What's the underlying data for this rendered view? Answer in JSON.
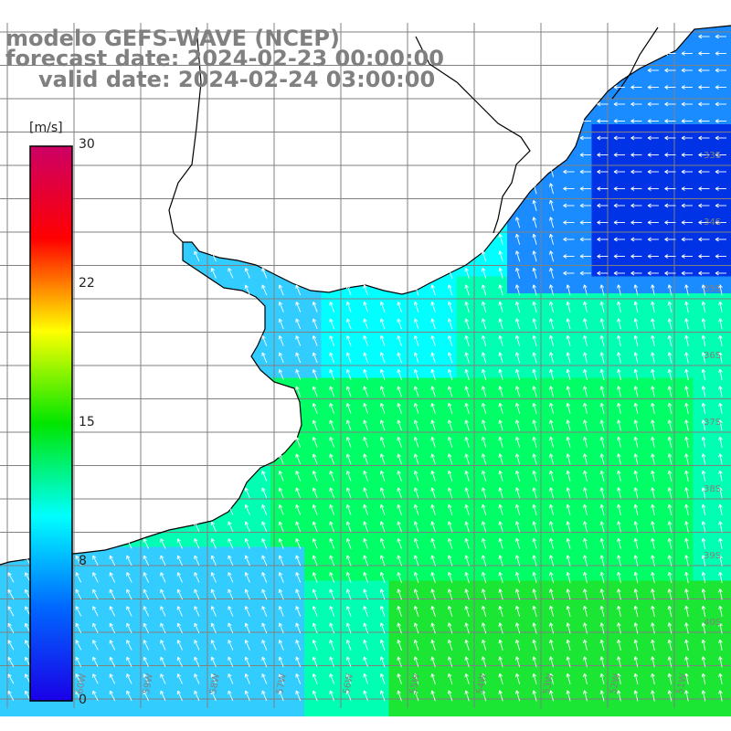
{
  "title": {
    "line1": "modelo GEFS-WAVE (NCEP)",
    "line2": "forecast date: 2024-02-23 00:00:00",
    "line3": "valid date: 2024-02-24 03:00:00"
  },
  "colorbar": {
    "unit": "[m/s]",
    "min": 0,
    "max": 30,
    "ticks": [
      "30",
      "22",
      "15",
      "8",
      "0"
    ],
    "tick_values": [
      30,
      22,
      15,
      8,
      0
    ],
    "stops": [
      "#1a00e6",
      "#0066ff",
      "#00ffff",
      "#00e600",
      "#ffff00",
      "#ff0000",
      "#cc0066"
    ]
  },
  "map": {
    "lat_labels": [
      "33S",
      "34S",
      "35S",
      "36S",
      "37S",
      "38S",
      "39S",
      "40S"
    ],
    "lon_labels": [
      "60W",
      "59W",
      "58W",
      "57W",
      "56W",
      "55W",
      "54W",
      "53W",
      "52W",
      "51W"
    ],
    "land_color": "#ffffff",
    "grid_color": "#808080",
    "coast_color": "#000000",
    "arrow_color": "#ffffff",
    "palette": {
      "deep_blue": "#0033e6",
      "blue": "#1a8cff",
      "light_blue": "#33ccff",
      "cyan": "#00ffff",
      "aqua_green": "#00ffb3",
      "green": "#00ff66",
      "bright_green": "#1ae633"
    }
  }
}
